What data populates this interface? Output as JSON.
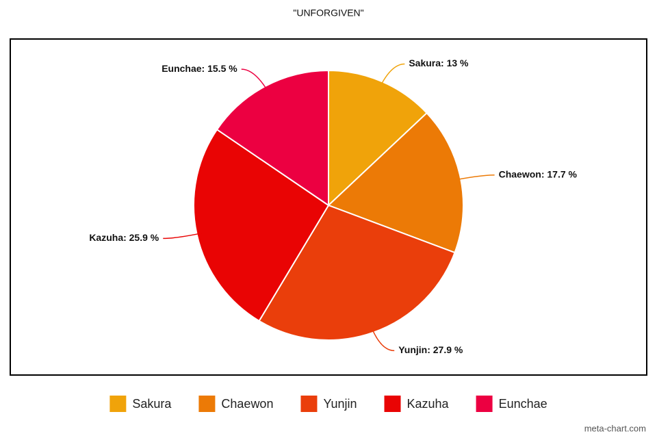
{
  "chart_data": {
    "type": "pie",
    "title": "\"UNFORGIVEN\"",
    "categories": [
      "Sakura",
      "Chaewon",
      "Yunjin",
      "Kazuha",
      "Eunchae"
    ],
    "values": [
      13,
      17.7,
      27.9,
      25.9,
      15.5
    ],
    "value_labels": [
      "Sakura: 13 %",
      "Chaewon: 17.7 %",
      "Yunjin: 27.9 %",
      "Kazuha: 25.9 %",
      "Eunchae: 15.5 %"
    ],
    "colors": [
      "#f0a30a",
      "#ec7a06",
      "#ea3e0b",
      "#e90404",
      "#ec0041"
    ],
    "legend": "bottom",
    "watermark": "meta-chart.com"
  }
}
